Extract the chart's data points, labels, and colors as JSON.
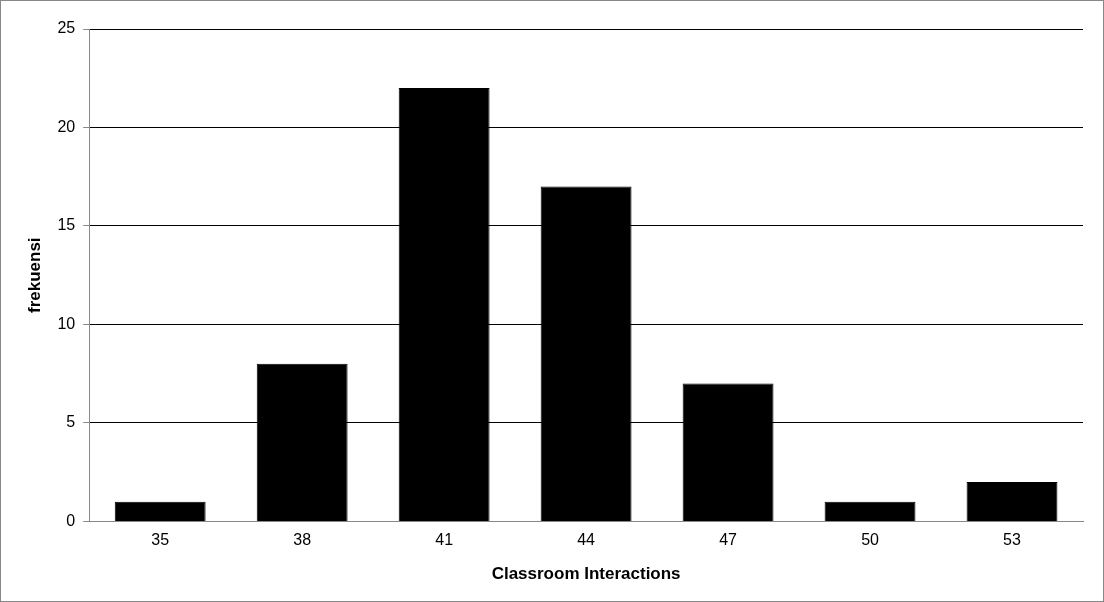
{
  "chart_data": {
    "type": "bar",
    "xlabel": "Classroom Interactions",
    "ylabel": "frekuensi",
    "categories": [
      "35",
      "38",
      "41",
      "44",
      "47",
      "50",
      "53"
    ],
    "values": [
      1,
      8,
      22,
      17,
      7,
      1,
      2
    ],
    "color": "#000000",
    "ylim": [
      0,
      25
    ],
    "yticks": [
      0,
      5,
      10,
      15,
      20,
      25
    ],
    "grid": "y",
    "legend": false
  }
}
